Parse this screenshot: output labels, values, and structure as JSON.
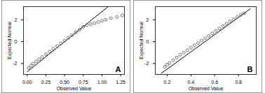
{
  "chart_data": [
    {
      "type": "scatter",
      "annotation": "A",
      "x_label": "Observed Value",
      "y_label": "Expected Normal",
      "x": [
        0.02,
        0.05,
        0.08,
        0.12,
        0.16,
        0.2,
        0.25,
        0.3,
        0.35,
        0.4,
        0.45,
        0.5,
        0.55,
        0.6,
        0.65,
        0.7,
        0.75,
        0.8,
        0.85,
        0.9,
        0.95,
        1.0,
        1.05,
        1.12,
        1.2,
        1.27
      ],
      "values": [
        -2.4,
        -2.2,
        -2.0,
        -1.8,
        -1.6,
        -1.4,
        -1.15,
        -0.9,
        -0.65,
        -0.4,
        -0.15,
        0.1,
        0.35,
        0.6,
        0.85,
        1.1,
        1.35,
        1.5,
        1.6,
        1.7,
        1.8,
        1.9,
        2.0,
        2.15,
        2.25,
        2.4
      ],
      "marker": "circle",
      "color": "#555555",
      "line": {
        "x": [
          0,
          1.1
        ],
        "values": [
          -2.75,
          3.3
        ],
        "color": "#000000"
      },
      "xlim": [
        -0.05,
        1.3
      ],
      "ylim": [
        -3,
        3.2
      ],
      "xticks": [
        {
          "value": 0,
          "label": "0.00"
        },
        {
          "value": 0.25,
          "label": "0.25"
        },
        {
          "value": 0.5,
          "label": "0.50"
        },
        {
          "value": 0.75,
          "label": "0.75"
        },
        {
          "value": 1,
          "label": "1.00"
        },
        {
          "value": 1.25,
          "label": "1.25"
        }
      ],
      "yticks": [
        -2,
        0,
        2
      ]
    },
    {
      "type": "scatter",
      "annotation": "B",
      "x_label": "Observed Value",
      "y_label": "Expected Normal",
      "x": [
        0.18,
        0.2,
        0.22,
        0.25,
        0.28,
        0.31,
        0.34,
        0.37,
        0.4,
        0.43,
        0.46,
        0.49,
        0.52,
        0.55,
        0.58,
        0.61,
        0.64,
        0.67,
        0.7,
        0.73,
        0.76,
        0.79,
        0.82,
        0.85
      ],
      "values": [
        -2.3,
        -2.1,
        -1.95,
        -1.7,
        -1.45,
        -1.2,
        -1.0,
        -0.78,
        -0.56,
        -0.34,
        -0.12,
        0.1,
        0.32,
        0.54,
        0.76,
        0.98,
        1.2,
        1.42,
        1.64,
        1.86,
        2.05,
        2.25,
        2.45,
        2.6
      ],
      "marker": "circle",
      "color": "#555555",
      "line": {
        "x": [
          0.15,
          0.9
        ],
        "values": [
          -2.9,
          3.0
        ],
        "color": "#000000"
      },
      "xlim": [
        0.1,
        0.95
      ],
      "ylim": [
        -3,
        3.2
      ],
      "xticks": [
        0.2,
        0.4,
        0.6,
        0.8
      ],
      "yticks": [
        -2,
        0,
        2
      ]
    }
  ]
}
